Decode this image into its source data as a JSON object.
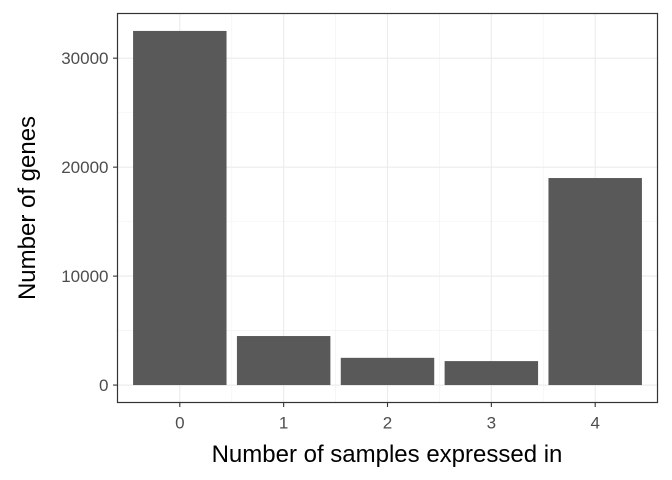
{
  "chart_data": {
    "type": "bar",
    "title": "",
    "xlabel": "Number of samples expressed in",
    "ylabel": "Number of genes",
    "categories": [
      "0",
      "1",
      "2",
      "3",
      "4"
    ],
    "values": [
      32500,
      4500,
      2500,
      2200,
      19000
    ],
    "ylim": [
      -1600,
      34100
    ],
    "yticks": [
      0,
      10000,
      20000,
      30000
    ],
    "ytick_labels": [
      "0",
      "10000",
      "20000",
      "30000"
    ],
    "grid": true,
    "legend": "none",
    "colors": {
      "bar": "#595959",
      "grid_major": "#ebebeb",
      "grid_minor": "#f5f5f5",
      "panel_border": "#333333",
      "tick_text": "#4d4d4d"
    }
  }
}
